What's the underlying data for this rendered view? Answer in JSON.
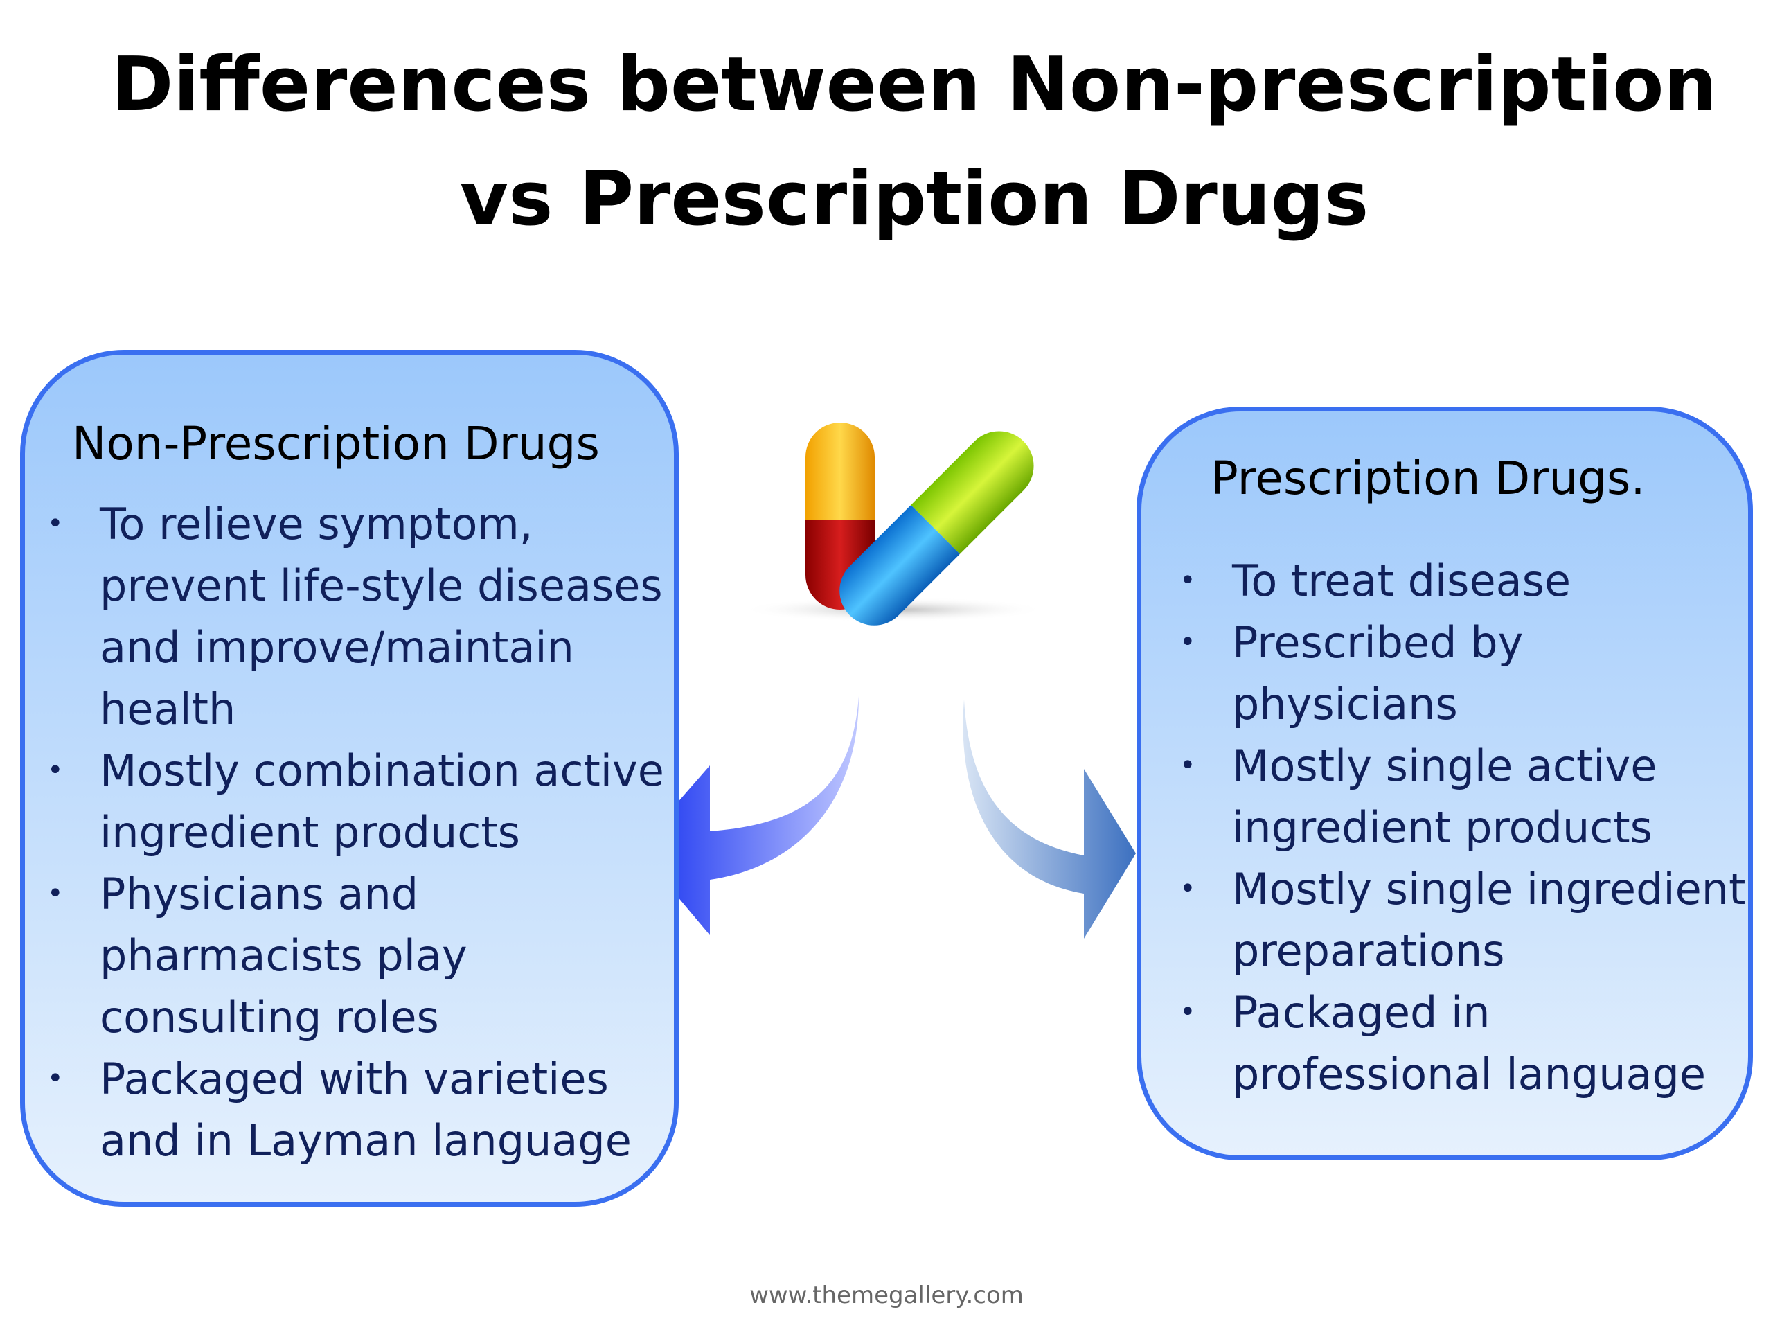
{
  "title": "Differences between Non-prescription vs Prescription Drugs",
  "left_panel": {
    "heading": "Non-Prescription Drugs",
    "items": [
      "To relieve symptom, prevent life-style diseases and improve/maintain health",
      "Mostly combination active ingredient products",
      "Physicians and pharmacists play consulting roles",
      "Packaged with varieties and in Layman language"
    ]
  },
  "right_panel": {
    "heading": "Prescription Drugs.",
    "items": [
      "To treat disease",
      "Prescribed by physicians",
      "Mostly single active ingredient products",
      "Mostly single ingredient preparations",
      "Packaged in professional language"
    ]
  },
  "footer": "www.themegallery.com"
}
